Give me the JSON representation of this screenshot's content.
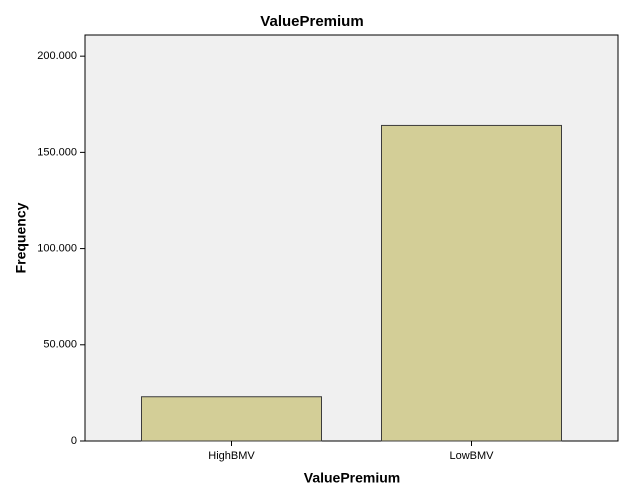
{
  "chart_data": {
    "type": "bar",
    "title": "ValuePremium",
    "x_label": "ValuePremium",
    "y_label": "Frequency",
    "categories": [
      "HighBMV",
      "LowBMV"
    ],
    "values": [
      23,
      164
    ],
    "color": "#d3ce97",
    "ylim": [
      0,
      211
    ],
    "yticks": [
      0,
      {
        "value": 50,
        "label": "50.000"
      },
      {
        "value": 100,
        "label": "100.000"
      },
      {
        "value": 150,
        "label": "150.000"
      },
      {
        "value": 200,
        "label": "200.000"
      }
    ]
  }
}
